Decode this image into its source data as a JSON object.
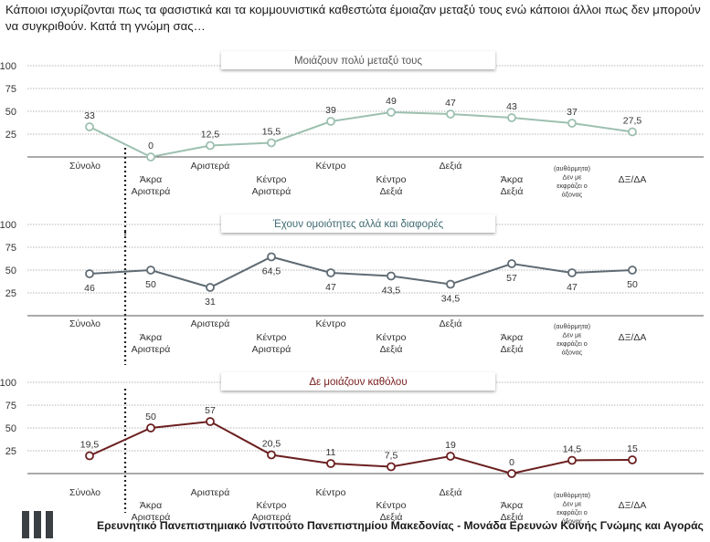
{
  "question": "Κάποιοι ισχυρίζονται πως τα φασιστικά και τα κομμουνιστικά καθεστώτα έμοιαζαν μεταξύ τους ενώ κάποιοι άλλοι πως δεν μπορούν να συγκριθούν. Κατά τη γνώμη σας…",
  "footer": {
    "text": "Ερευνητικό Πανεπιστημιακό Ινστιτούτο Πανεπιστημίου Μακεδονίας - Μονάδα Ερευνών Κοινής Γνώμης και Αγοράς",
    "logo_icon": "three-bars-logo-icon"
  },
  "chart_data": [
    {
      "type": "line",
      "title": "Μοιάζουν πολύ μεταξύ τους",
      "color": "#9dc0b0",
      "title_color": "#555555",
      "categories": [
        [
          "Σύνολο"
        ],
        [
          "Άκρα",
          "Αριστερά"
        ],
        [
          "Αριστερά"
        ],
        [
          "Κέντρο",
          "Αριστερά"
        ],
        [
          "Κέντρο"
        ],
        [
          "Κέντρο",
          "Δεξιά"
        ],
        [
          "Δεξιά"
        ],
        [
          "Άκρα",
          "Δεξιά"
        ],
        [
          "(αυθόρμητα)",
          "Δεν με",
          "εκφράζει ο",
          "άξονας"
        ],
        [
          "ΔΞ/ΔΑ"
        ]
      ],
      "values": [
        33,
        0,
        12.5,
        15.5,
        39,
        49,
        47,
        43,
        37,
        27.5
      ],
      "labels": [
        "33",
        "0",
        "12,5",
        "15,5",
        "39",
        "49",
        "47",
        "43",
        "37",
        "27,5"
      ],
      "label_pos": [
        "above",
        "above",
        "above",
        "above",
        "above",
        "above",
        "above",
        "above",
        "above",
        "above"
      ],
      "yticks": [
        25,
        50,
        75,
        100
      ],
      "ylim": [
        0,
        100
      ]
    },
    {
      "type": "line",
      "title": "Έχουν ομοιότητες αλλά και διαφορές",
      "color": "#5f6b73",
      "title_color": "#3e6a72",
      "categories": [
        [
          "Σύνολο"
        ],
        [
          "Άκρα",
          "Αριστερά"
        ],
        [
          "Αριστερά"
        ],
        [
          "Κέντρο",
          "Αριστερά"
        ],
        [
          "Κέντρο"
        ],
        [
          "Κέντρο",
          "Δεξιά"
        ],
        [
          "Δεξιά"
        ],
        [
          "Άκρα",
          "Δεξιά"
        ],
        [
          "(αυθόρμητα)",
          "Δεν με",
          "εκφράζει ο",
          "άξονας"
        ],
        [
          "ΔΞ/ΔΑ"
        ]
      ],
      "values": [
        46,
        50,
        31,
        64.5,
        47,
        43.5,
        34.5,
        57,
        47,
        50
      ],
      "labels": [
        "46",
        "50",
        "31",
        "64,5",
        "47",
        "43,5",
        "34,5",
        "57",
        "47",
        "50"
      ],
      "label_pos": [
        "below",
        "below",
        "below",
        "below",
        "below",
        "below",
        "below",
        "below",
        "below",
        "below"
      ],
      "yticks": [
        25,
        50,
        75,
        100
      ],
      "ylim": [
        0,
        100
      ]
    },
    {
      "type": "line",
      "title": "Δε μοιάζουν καθόλου",
      "color": "#6b1f1f",
      "title_color": "#7a2020",
      "categories": [
        [
          "Σύνολο"
        ],
        [
          "Άκρα",
          "Αριστερά"
        ],
        [
          "Αριστερά"
        ],
        [
          "Κέντρο",
          "Αριστερά"
        ],
        [
          "Κέντρο"
        ],
        [
          "Κέντρο",
          "Δεξιά"
        ],
        [
          "Δεξιά"
        ],
        [
          "Άκρα",
          "Δεξιά"
        ],
        [
          "(αυθόρμητα)",
          "Δεν με",
          "εκφράζει ο",
          "άξονας"
        ],
        [
          "ΔΞ/ΔΑ"
        ]
      ],
      "values": [
        19.5,
        50,
        57,
        20.5,
        11,
        7.5,
        19,
        0,
        14.5,
        15
      ],
      "labels": [
        "19,5",
        "50",
        "57",
        "20,5",
        "11",
        "7,5",
        "19",
        "0",
        "14,5",
        "15"
      ],
      "label_pos": [
        "above",
        "above",
        "above",
        "above",
        "above",
        "above",
        "above",
        "above",
        "above",
        "above"
      ],
      "yticks": [
        25,
        50,
        75,
        100
      ],
      "ylim": [
        0,
        100
      ]
    }
  ]
}
